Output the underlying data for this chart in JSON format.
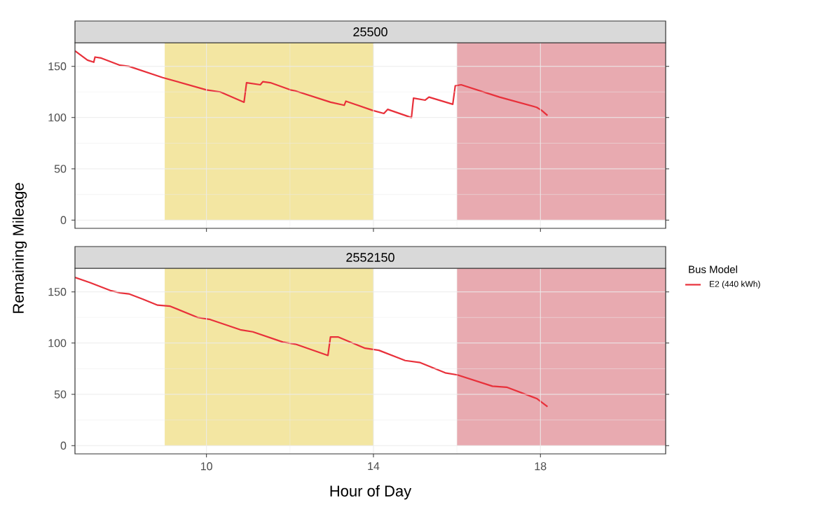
{
  "chart_data": [
    {
      "type": "line",
      "title": "25500",
      "ylabel": "Remaining Mileage",
      "legend_title": "Bus Model",
      "legend": "right",
      "grid": true,
      "tick_labels": "y",
      "xlim": [
        6.85,
        21
      ],
      "ylim": [
        -8,
        173
      ],
      "xticks": [
        10,
        14,
        18
      ],
      "yticks": [
        0,
        50,
        100,
        150
      ],
      "bands": [
        {
          "axis": "x",
          "from": 9,
          "to": 14,
          "color": "#f3e6a2"
        },
        {
          "axis": "x",
          "from": 16,
          "to": 21,
          "color": "#e8aab0"
        }
      ],
      "x": [
        6.85,
        7.15,
        7.3,
        7.33,
        7.48,
        7.93,
        8.14,
        8.95,
        10.0,
        10.33,
        10.9,
        10.96,
        11.29,
        11.35,
        11.53,
        12.01,
        12.13,
        12.97,
        13.3,
        13.34,
        13.98,
        14.25,
        14.34,
        14.91,
        14.96,
        15.24,
        15.33,
        15.9,
        15.96,
        16.1,
        17.02,
        17.91,
        18.03,
        18.17
      ],
      "series": [
        {
          "name": "E2 (440 kWh)",
          "color": "#e8303a",
          "values": [
            165,
            156,
            154,
            159,
            158,
            151,
            150,
            139,
            127,
            125,
            115,
            134,
            132,
            135,
            134,
            127,
            126,
            115,
            112,
            116,
            107,
            104,
            108,
            100,
            119,
            117,
            120,
            113,
            131,
            132,
            120,
            110,
            107,
            102
          ]
        }
      ]
    },
    {
      "type": "line",
      "title": "2552150",
      "xlabel": "Hour of Day",
      "grid": true,
      "xlim": [
        6.85,
        21
      ],
      "ylim": [
        -8,
        173
      ],
      "xticks": [
        10,
        14,
        18
      ],
      "yticks": [
        0,
        50,
        100,
        150
      ],
      "bands": [
        {
          "axis": "x",
          "from": 9,
          "to": 14,
          "color": "#f3e6a2"
        },
        {
          "axis": "x",
          "from": 16,
          "to": 21,
          "color": "#e8aab0"
        }
      ],
      "x": [
        6.85,
        7.21,
        7.72,
        7.93,
        8.14,
        8.47,
        8.83,
        9.13,
        9.79,
        10.09,
        10.81,
        11.11,
        11.83,
        12.13,
        12.91,
        12.97,
        13.15,
        13.8,
        14.13,
        14.76,
        15.12,
        15.72,
        16.01,
        16.85,
        17.19,
        17.91,
        18.17
      ],
      "series": [
        {
          "color": "#e8303a",
          "values": [
            164,
            159,
            151,
            149,
            148,
            143,
            137,
            136,
            125,
            123,
            113,
            111,
            101,
            99,
            88,
            106,
            106,
            95,
            93,
            83,
            81,
            71,
            69,
            58,
            57,
            46,
            38
          ]
        }
      ]
    }
  ]
}
